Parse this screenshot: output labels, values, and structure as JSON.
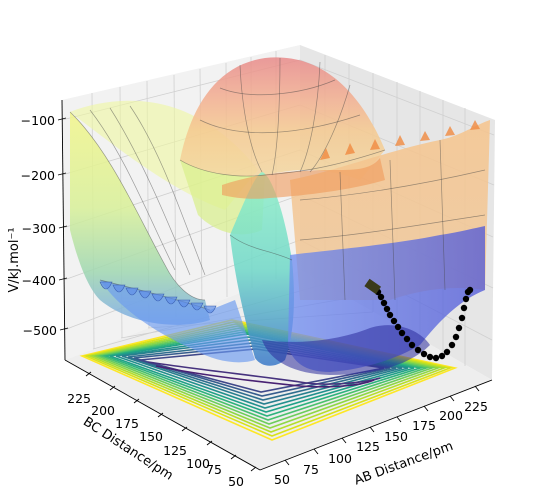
{
  "chart_data": {
    "type": "surface",
    "xlabel": "AB Distance/pm",
    "ylabel": "BC Distance/pm",
    "zlabel": "V/kJ.mol⁻¹",
    "x_ticks": [
      "50",
      "75",
      "100",
      "125",
      "150",
      "175",
      "200",
      "225"
    ],
    "y_ticks": [
      "50",
      "75",
      "100",
      "125",
      "150",
      "175",
      "200",
      "225"
    ],
    "z_ticks": [
      "−500",
      "−400",
      "−300",
      "−200",
      "−100"
    ],
    "xlim": [
      40,
      245
    ],
    "ylim": [
      40,
      245
    ],
    "zlim": [
      -580,
      -60
    ],
    "surface_colormap": "nipy_spectral",
    "surface_alpha": 0.35,
    "contour_colormap": "viridis",
    "trajectory_color": "#000000",
    "grid": true
  }
}
